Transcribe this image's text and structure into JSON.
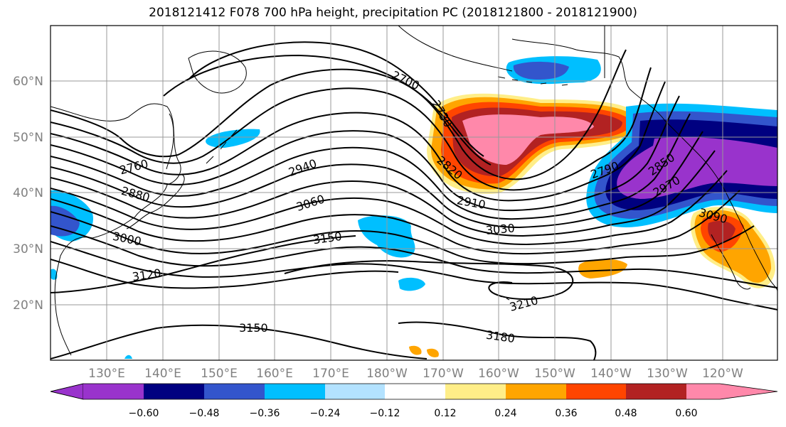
{
  "title": "2018121412 F078 700 hPa height, precipitation PC (2018121800 - 2018121900)",
  "map": {
    "lat_labels": [
      "60°N",
      "50°N",
      "40°N",
      "30°N",
      "20°N"
    ],
    "lon_labels": [
      "130°E",
      "140°E",
      "150°E",
      "160°E",
      "170°E",
      "180°W",
      "170°W",
      "160°W",
      "150°W",
      "140°W",
      "130°W",
      "120°W"
    ],
    "height_contour_labels": [
      {
        "text": "2700"
      },
      {
        "text": "2730"
      },
      {
        "text": "2760"
      },
      {
        "text": "2790"
      },
      {
        "text": "2820"
      },
      {
        "text": "2850"
      },
      {
        "text": "2880"
      },
      {
        "text": "2910"
      },
      {
        "text": "2940"
      },
      {
        "text": "2970"
      },
      {
        "text": "3000"
      },
      {
        "text": "3030"
      },
      {
        "text": "3060"
      },
      {
        "text": "3090"
      },
      {
        "text": "3120"
      },
      {
        "text": "3150"
      },
      {
        "text": "3150"
      },
      {
        "text": "3180"
      },
      {
        "text": "3210"
      }
    ]
  },
  "colorbar": {
    "ticks": [
      "−0.60",
      "−0.48",
      "−0.36",
      "−0.24",
      "−0.12",
      "0.12",
      "0.24",
      "0.36",
      "0.48",
      "0.60"
    ],
    "colors": [
      "#9933cc",
      "#000080",
      "#3355cc",
      "#00bfff",
      "#b3e2ff",
      "#ffffff",
      "#ffee88",
      "#ffa500",
      "#ff4500",
      "#b22222",
      "#ff88aa"
    ]
  }
}
